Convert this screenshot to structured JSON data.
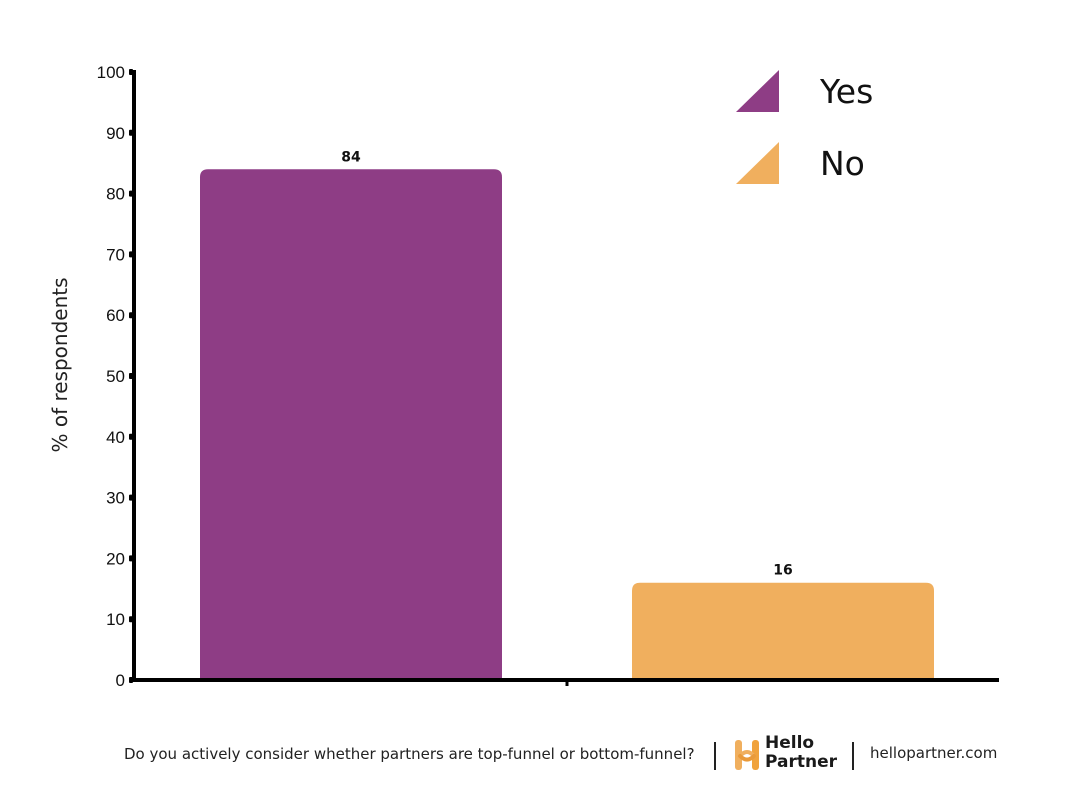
{
  "chart_data": {
    "type": "bar",
    "categories": [
      "Yes",
      "No"
    ],
    "values": [
      84,
      16
    ],
    "colors": [
      "#8e3d85",
      "#f0af5e"
    ],
    "title": "",
    "xlabel": "",
    "ylabel": "% of respondents",
    "ylim": [
      0,
      100
    ],
    "yticks": [
      0,
      10,
      20,
      30,
      40,
      50,
      60,
      70,
      80,
      90,
      100
    ],
    "data_labels": true,
    "legend": {
      "placement": "top-right",
      "entries": [
        {
          "label": "Yes",
          "color": "#8e3d85"
        },
        {
          "label": "No",
          "color": "#f0af5e"
        }
      ]
    },
    "grid": false
  },
  "footer": {
    "question": "Do you actively consider whether partners are top-funnel or bottom-funnel?",
    "brand_line1": "Hello",
    "brand_line2": "Partner",
    "brand_icon": "hello-partner-logo-icon",
    "website": "hellopartner.com"
  }
}
